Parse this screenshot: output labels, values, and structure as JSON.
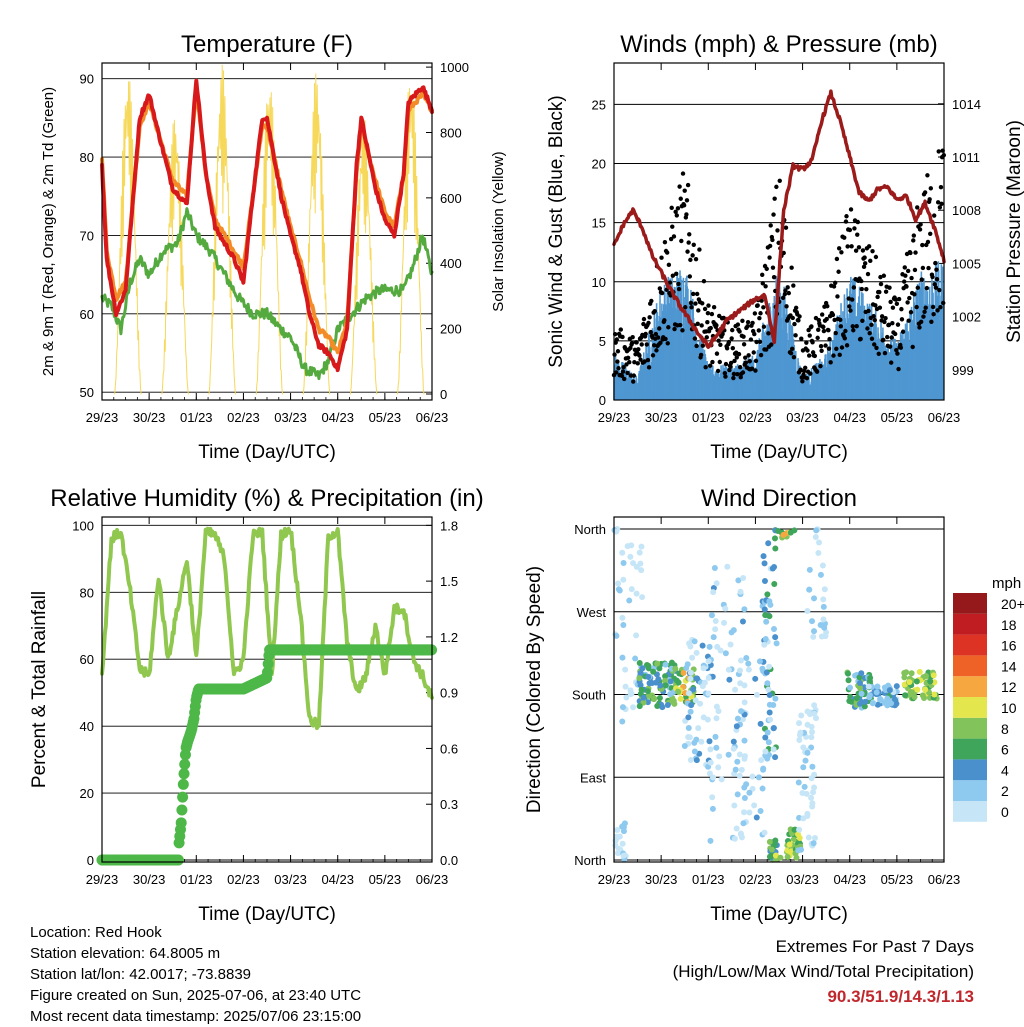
{
  "info": {
    "location": "Location: Red Hook",
    "elevation": "Station elevation: 64.8005 m",
    "latlon": "Station lat/lon: 42.0017; -73.8839",
    "created": "Figure created on Sun, 2025-07-06, at 23:40 UTC",
    "latest": "Most recent data timestamp: 2025/07/06 23:15:00"
  },
  "extremes": {
    "title": "Extremes For Past 7 Days",
    "subtitle": "(High/Low/Max Wind/Total Precipitation)",
    "values": "90.3/51.9/14.3/1.13",
    "color": "#c0282d"
  },
  "chart_data": [
    {
      "type": "line",
      "title": "Temperature (F)",
      "xlabel": "Time (Day/UTC)",
      "ylabel": "2m & 9m T (Red, Orange) & 2m Td (Green)",
      "y2label": "Solar Insolation (Yellow)",
      "x_ticks": [
        "29/23",
        "30/23",
        "01/23",
        "02/23",
        "03/23",
        "04/23",
        "05/23",
        "06/23"
      ],
      "ylim": [
        49,
        92
      ],
      "y_ticks": [
        50,
        60,
        70,
        80,
        90
      ],
      "y2lim": [
        0,
        1000
      ],
      "y2_ticks": [
        0,
        200,
        400,
        600,
        800,
        1000
      ],
      "grid": true,
      "colors": {
        "t2m": "#d7191c",
        "t9m": "#f28c28",
        "td": "#54aa3f",
        "solar": "#f6d85a"
      },
      "series": [
        {
          "key": "t2m",
          "x": [
            0,
            0.1,
            0.3,
            0.5,
            0.8,
            1.0,
            1.2,
            1.5,
            1.8,
            2.0,
            2.2,
            2.4,
            2.5,
            2.8,
            3.0,
            3.2,
            3.4,
            3.5,
            3.8,
            4.0,
            4.2,
            4.4,
            4.6,
            4.8,
            5.0,
            5.2,
            5.4,
            5.5,
            5.8,
            6.0,
            6.2,
            6.4,
            6.5,
            6.8,
            7.0
          ],
          "y": [
            79,
            67,
            60,
            63,
            85,
            88,
            83,
            76,
            74,
            90,
            78,
            71,
            70,
            67,
            64,
            75,
            85,
            85,
            75,
            70,
            66,
            60,
            56,
            55,
            53,
            58,
            79,
            85,
            76,
            72,
            70,
            78,
            87,
            89,
            86
          ]
        },
        {
          "key": "t9m",
          "x": [
            0,
            0.1,
            0.3,
            0.5,
            0.8,
            1.0,
            1.2,
            1.5,
            1.8,
            2.0,
            2.2,
            2.4,
            2.5,
            2.8,
            3.0,
            3.2,
            3.4,
            3.5,
            3.8,
            4.0,
            4.2,
            4.4,
            4.6,
            4.8,
            5.0,
            5.2,
            5.4,
            5.5,
            5.8,
            6.0,
            6.2,
            6.4,
            6.5,
            6.8,
            7.0
          ],
          "y": [
            80,
            68,
            62,
            64,
            84,
            87,
            83,
            77,
            75,
            89,
            78,
            72,
            71,
            68,
            66,
            75,
            84,
            84,
            76,
            71,
            67,
            62,
            58,
            57,
            55,
            59,
            78,
            84,
            77,
            73,
            71,
            78,
            86,
            88,
            86
          ]
        },
        {
          "key": "td",
          "x": [
            0,
            0.2,
            0.4,
            0.6,
            0.8,
            1.0,
            1.3,
            1.6,
            1.8,
            2.0,
            2.3,
            2.6,
            2.9,
            3.2,
            3.5,
            3.8,
            4.0,
            4.3,
            4.6,
            4.8,
            5.0,
            5.3,
            5.6,
            5.9,
            6.1,
            6.4,
            6.6,
            6.8,
            7.0
          ],
          "y": [
            62,
            61,
            58,
            64,
            67,
            65,
            68,
            69,
            73,
            70,
            68,
            65,
            62,
            60,
            60,
            58,
            57,
            53,
            52,
            54,
            58,
            60,
            62,
            63,
            63,
            63,
            66,
            70,
            65
          ]
        },
        {
          "key": "solar",
          "type": "diurnal",
          "peaks": [
            1000,
            860,
            1010,
            980,
            990,
            850,
            1000
          ],
          "peak_x": [
            0.55,
            1.55,
            2.55,
            3.55,
            4.55,
            5.55,
            6.55
          ]
        }
      ]
    },
    {
      "type": "scatter",
      "title": "Winds (mph) & Pressure (mb)",
      "xlabel": "Time (Day/UTC)",
      "ylabel": "Sonic Wind & Gust (Blue, Black)",
      "y2label": "Station Pressure (Maroon)",
      "x_ticks": [
        "29/23",
        "30/23",
        "01/23",
        "02/23",
        "03/23",
        "04/23",
        "05/23",
        "06/23"
      ],
      "ylim": [
        0,
        28.5
      ],
      "y_ticks": [
        0,
        5,
        10,
        15,
        20,
        25
      ],
      "y2lim": [
        997.3,
        1016.3
      ],
      "y2_ticks": [
        999,
        1002,
        1005,
        1008,
        1011,
        1014
      ],
      "grid_y": [
        0,
        5,
        10,
        15,
        20,
        25
      ],
      "colors": {
        "wind": "#4f97d1",
        "gust": "#000000",
        "pressure": "#9b1a1a"
      },
      "wind_envelope": {
        "x": [
          0,
          0.5,
          1.0,
          1.5,
          2.0,
          2.5,
          3.0,
          3.5,
          4.0,
          4.5,
          5.0,
          5.5,
          6.0,
          6.5,
          7.0
        ],
        "y": [
          4,
          2,
          10,
          12,
          3,
          3,
          4,
          12,
          2,
          4,
          11,
          8,
          5,
          11,
          12
        ]
      },
      "gust_envelope": {
        "x": [
          0,
          0.5,
          1.0,
          1.5,
          2.0,
          2.5,
          3.0,
          3.5,
          4.0,
          4.5,
          5.0,
          5.5,
          6.0,
          6.5,
          7.0
        ],
        "y": [
          6,
          5,
          13,
          19,
          8,
          6,
          7,
          19,
          5,
          8,
          16,
          12,
          8,
          17,
          22
        ]
      },
      "pressure": {
        "x": [
          0,
          0.2,
          0.4,
          0.6,
          0.8,
          1.0,
          1.2,
          1.4,
          1.6,
          1.8,
          2.0,
          2.2,
          2.4,
          2.6,
          2.8,
          3.0,
          3.2,
          3.4,
          3.6,
          3.8,
          4.0,
          4.2,
          4.4,
          4.6,
          4.8,
          5.0,
          5.2,
          5.4,
          5.6,
          5.8,
          6.0,
          6.2,
          6.4,
          6.6,
          6.8,
          7.0
        ],
        "y": [
          1006.0,
          1007.2,
          1008.0,
          1007.0,
          1005.5,
          1004.5,
          1003.5,
          1002.6,
          1001.8,
          1001.0,
          1000.3,
          1001.0,
          1001.8,
          1002.2,
          1002.6,
          1003.0,
          1003.2,
          1000.6,
          1008.0,
          1010.5,
          1010.3,
          1010.8,
          1013.0,
          1014.6,
          1013.0,
          1011.0,
          1009.0,
          1008.5,
          1009.2,
          1009.3,
          1008.6,
          1008.8,
          1007.5,
          1008.4,
          1007.0,
          1005.2
        ]
      }
    },
    {
      "type": "line",
      "title": "Relative Humidity (%) & Precipitation (in)",
      "xlabel": "Time (Day/UTC)",
      "ylabel": "Percent & Total Rainfall",
      "x_ticks": [
        "29/23",
        "30/23",
        "01/23",
        "02/23",
        "03/23",
        "04/23",
        "05/23",
        "06/23"
      ],
      "ylim": [
        0,
        100
      ],
      "y_ticks": [
        0,
        20,
        40,
        60,
        80,
        100
      ],
      "y2lim": [
        0,
        1.8
      ],
      "y2_ticks": [
        "0.0",
        "0.3",
        "0.6",
        "0.9",
        "1.2",
        "1.5",
        "1.8"
      ],
      "grid": true,
      "colors": {
        "rh": "#8fc74f",
        "precip": "#4db848"
      },
      "series": [
        {
          "key": "rh",
          "x": [
            0,
            0.2,
            0.4,
            0.6,
            0.8,
            1.0,
            1.2,
            1.4,
            1.6,
            1.8,
            2.0,
            2.2,
            2.4,
            2.6,
            2.8,
            3.0,
            3.2,
            3.4,
            3.6,
            3.8,
            4.0,
            4.2,
            4.4,
            4.6,
            4.8,
            5.0,
            5.2,
            5.4,
            5.6,
            5.8,
            6.0,
            6.2,
            6.4,
            6.6,
            6.8,
            7.0
          ],
          "y": [
            55,
            96,
            98,
            80,
            57,
            55,
            85,
            60,
            75,
            90,
            60,
            98,
            97,
            90,
            55,
            60,
            97,
            98,
            55,
            97,
            99,
            75,
            42,
            40,
            97,
            98,
            65,
            50,
            55,
            70,
            55,
            75,
            75,
            60,
            55,
            48
          ]
        },
        {
          "key": "precip",
          "x": [
            0,
            1.0,
            1.62,
            1.63,
            1.68,
            1.73,
            1.78,
            1.82,
            1.85,
            1.9,
            1.95,
            2.0,
            2.05,
            2.15,
            3.0,
            3.5,
            3.55,
            7.0
          ],
          "y": [
            0,
            0,
            0,
            0.08,
            0.2,
            0.43,
            0.6,
            0.64,
            0.66,
            0.7,
            0.76,
            0.87,
            0.92,
            0.92,
            0.92,
            0.98,
            1.13,
            1.13
          ]
        }
      ]
    },
    {
      "type": "scatter",
      "title": "Wind Direction",
      "xlabel": "Time (Day/UTC)",
      "ylabel": "Direction (Colored By Speed)",
      "x_ticks": [
        "29/23",
        "30/23",
        "01/23",
        "02/23",
        "03/23",
        "04/23",
        "05/23",
        "06/23"
      ],
      "ylim": [
        0,
        360
      ],
      "y_ticks": [
        "North",
        "East",
        "South",
        "West",
        "North"
      ],
      "grid": true,
      "colorbar": {
        "unit": "mph",
        "labels": [
          "0",
          "2",
          "4",
          "6",
          "8",
          "10",
          "12",
          "14",
          "16",
          "18",
          "20+"
        ],
        "colors": [
          "#c6e6f8",
          "#8ec9ef",
          "#4a90cc",
          "#3ea55b",
          "#83c35b",
          "#e4e64e",
          "#f7a740",
          "#ee6227",
          "#dd3325",
          "#c01d22",
          "#95181b"
        ]
      }
    }
  ]
}
